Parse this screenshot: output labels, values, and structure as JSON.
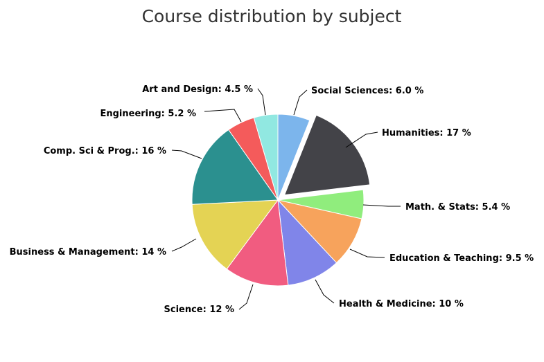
{
  "chart_data": {
    "type": "pie",
    "title": "Course distribution by subject",
    "unit": "%",
    "slices": [
      {
        "name": "Social Sciences",
        "value": 6.0,
        "label": "Social Sciences: 6.0 %",
        "color": "#7cb5ec",
        "exploded": false
      },
      {
        "name": "Humanities",
        "value": 17,
        "label": "Humanities: 17 %",
        "color": "#434348",
        "exploded": true
      },
      {
        "name": "Math. & Stats",
        "value": 5.4,
        "label": "Math. & Stats: 5.4 %",
        "color": "#90ed7d",
        "exploded": false
      },
      {
        "name": "Education & Teaching",
        "value": 9.5,
        "label": "Education & Teaching: 9.5 %",
        "color": "#f7a35c",
        "exploded": false
      },
      {
        "name": "Health & Medicine",
        "value": 10,
        "label": "Health & Medicine: 10 %",
        "color": "#8085e9",
        "exploded": false
      },
      {
        "name": "Science",
        "value": 12,
        "label": "Science: 12 %",
        "color": "#f15c80",
        "exploded": false
      },
      {
        "name": "Business & Management",
        "value": 14,
        "label": "Business & Management: 14 %",
        "color": "#e4d354",
        "exploded": false
      },
      {
        "name": "Comp. Sci & Prog.",
        "value": 16,
        "label": "Comp. Sci & Prog.: 16 %",
        "color": "#2b908f",
        "exploded": false
      },
      {
        "name": "Engineering",
        "value": 5.2,
        "label": "Engineering: 5.2 %",
        "color": "#f45b5b",
        "exploded": false
      },
      {
        "name": "Art and Design",
        "value": 4.5,
        "label": "Art and Design: 4.5 %",
        "color": "#91e8e1",
        "exploded": false
      }
    ]
  }
}
